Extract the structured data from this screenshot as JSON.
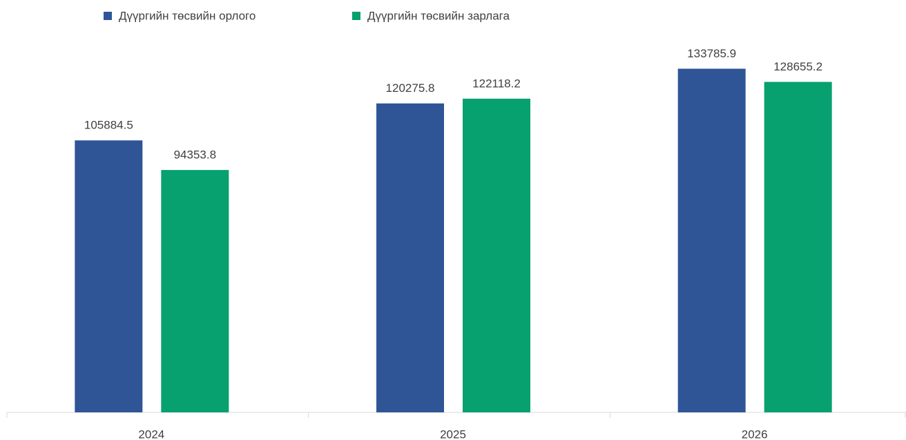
{
  "chart_data": {
    "type": "bar",
    "categories": [
      "2024",
      "2025",
      "2026"
    ],
    "series": [
      {
        "name": "Дүүргийн төсвийн орлого",
        "color": "#2f5597",
        "values": [
          105884.5,
          120275.8,
          133785.9
        ]
      },
      {
        "name": "Дүүргийн төсвийн зарлага",
        "color": "#07a06f",
        "values": [
          94353.8,
          122118.2,
          128655.2
        ]
      }
    ],
    "ylim": [
      0,
      160000
    ],
    "legend": "top"
  }
}
